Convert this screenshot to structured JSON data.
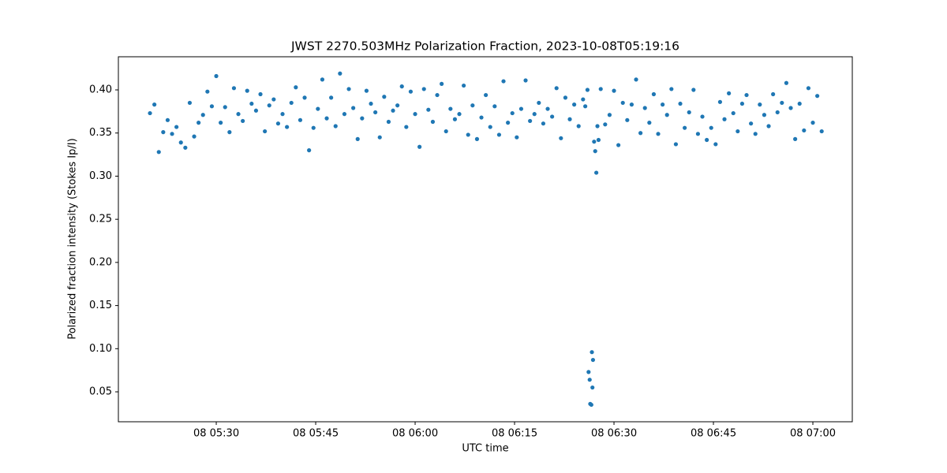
{
  "chart_data": {
    "type": "scatter",
    "title": "JWST 2270.503MHz Polarization Fraction, 2023-10-08T05:19:16",
    "x_label": "UTC time",
    "y_label": "Polarized fraction intensity (Stokes Ip/I)",
    "color": "#1f77b4",
    "xlim": [
      "05:15:14",
      "07:05:57"
    ],
    "xticks": [
      {
        "value": "05:30",
        "label": "08 05:30"
      },
      {
        "value": "05:45",
        "label": "08 05:45"
      },
      {
        "value": "06:00",
        "label": "08 06:00"
      },
      {
        "value": "06:15",
        "label": "08 06:15"
      },
      {
        "value": "06:30",
        "label": "08 06:30"
      },
      {
        "value": "06:45",
        "label": "08 06:45"
      },
      {
        "value": "07:00",
        "label": "08 07:00"
      }
    ],
    "ylim": [
      0.0153,
      0.4384
    ],
    "yticks": [
      {
        "value": 0.05,
        "label": "0.05"
      },
      {
        "value": 0.1,
        "label": "0.10"
      },
      {
        "value": 0.15,
        "label": "0.15"
      },
      {
        "value": 0.2,
        "label": "0.20"
      },
      {
        "value": 0.25,
        "label": "0.25"
      },
      {
        "value": 0.3,
        "label": "0.30"
      },
      {
        "value": 0.35,
        "label": "0.35"
      },
      {
        "value": 0.4,
        "label": "0.40"
      }
    ],
    "x": [
      "05:20:00",
      "05:20:40",
      "05:21:20",
      "05:22:00",
      "05:22:40",
      "05:23:20",
      "05:24:00",
      "05:24:40",
      "05:25:20",
      "05:26:00",
      "05:26:40",
      "05:27:20",
      "05:28:00",
      "05:28:40",
      "05:29:20",
      "05:30:00",
      "05:30:40",
      "05:31:20",
      "05:32:00",
      "05:32:40",
      "05:33:20",
      "05:34:00",
      "05:34:40",
      "05:35:20",
      "05:36:00",
      "05:36:40",
      "05:37:20",
      "05:38:00",
      "05:38:40",
      "05:39:20",
      "05:40:00",
      "05:40:40",
      "05:41:20",
      "05:42:00",
      "05:42:40",
      "05:43:20",
      "05:44:00",
      "05:44:40",
      "05:45:20",
      "05:46:00",
      "05:46:40",
      "05:47:20",
      "05:48:00",
      "05:48:40",
      "05:49:20",
      "05:50:00",
      "05:50:40",
      "05:51:20",
      "05:52:00",
      "05:52:40",
      "05:53:20",
      "05:54:00",
      "05:54:40",
      "05:55:20",
      "05:56:00",
      "05:56:40",
      "05:57:20",
      "05:58:00",
      "05:58:40",
      "05:59:20",
      "06:00:00",
      "06:00:40",
      "06:01:20",
      "06:02:00",
      "06:02:40",
      "06:03:20",
      "06:04:00",
      "06:04:40",
      "06:05:20",
      "06:06:00",
      "06:06:40",
      "06:07:20",
      "06:08:00",
      "06:08:40",
      "06:09:20",
      "06:10:00",
      "06:10:40",
      "06:11:20",
      "06:12:00",
      "06:12:40",
      "06:13:20",
      "06:14:00",
      "06:14:40",
      "06:15:20",
      "06:16:00",
      "06:16:40",
      "06:17:20",
      "06:18:00",
      "06:18:40",
      "06:19:20",
      "06:20:00",
      "06:20:40",
      "06:21:20",
      "06:22:00",
      "06:22:40",
      "06:23:20",
      "06:24:00",
      "06:24:40",
      "06:25:20",
      "06:25:40",
      "06:26:00",
      "06:26:10",
      "06:26:20",
      "06:26:25",
      "06:26:35",
      "06:26:40",
      "06:26:45",
      "06:26:50",
      "06:27:00",
      "06:27:10",
      "06:27:20",
      "06:27:30",
      "06:27:40",
      "06:28:00",
      "06:28:40",
      "06:29:20",
      "06:30:00",
      "06:30:40",
      "06:31:20",
      "06:32:00",
      "06:32:40",
      "06:33:20",
      "06:34:00",
      "06:34:40",
      "06:35:20",
      "06:36:00",
      "06:36:40",
      "06:37:20",
      "06:38:00",
      "06:38:40",
      "06:39:20",
      "06:40:00",
      "06:40:40",
      "06:41:20",
      "06:42:00",
      "06:42:40",
      "06:43:20",
      "06:44:00",
      "06:44:40",
      "06:45:20",
      "06:46:00",
      "06:46:40",
      "06:47:20",
      "06:48:00",
      "06:48:40",
      "06:49:20",
      "06:50:00",
      "06:50:40",
      "06:51:20",
      "06:52:00",
      "06:52:40",
      "06:53:20",
      "06:54:00",
      "06:54:40",
      "06:55:20",
      "06:56:00",
      "06:56:40",
      "06:57:20",
      "06:58:00",
      "06:58:40",
      "06:59:20",
      "07:00:00",
      "07:00:40",
      "07:01:20"
    ],
    "values": [
      0.373,
      0.383,
      0.328,
      0.351,
      0.365,
      0.349,
      0.357,
      0.339,
      0.333,
      0.385,
      0.346,
      0.362,
      0.371,
      0.398,
      0.381,
      0.416,
      0.362,
      0.38,
      0.351,
      0.402,
      0.372,
      0.364,
      0.399,
      0.384,
      0.376,
      0.395,
      0.352,
      0.382,
      0.389,
      0.361,
      0.372,
      0.357,
      0.385,
      0.403,
      0.365,
      0.391,
      0.33,
      0.356,
      0.378,
      0.412,
      0.367,
      0.391,
      0.358,
      0.419,
      0.372,
      0.401,
      0.379,
      0.343,
      0.367,
      0.399,
      0.384,
      0.374,
      0.345,
      0.392,
      0.363,
      0.376,
      0.382,
      0.404,
      0.357,
      0.398,
      0.372,
      0.334,
      0.401,
      0.377,
      0.363,
      0.394,
      0.407,
      0.352,
      0.378,
      0.366,
      0.372,
      0.405,
      0.348,
      0.382,
      0.343,
      0.368,
      0.394,
      0.357,
      0.381,
      0.348,
      0.41,
      0.362,
      0.373,
      0.345,
      0.378,
      0.411,
      0.364,
      0.372,
      0.385,
      0.361,
      0.378,
      0.369,
      0.402,
      0.344,
      0.391,
      0.366,
      0.383,
      0.358,
      0.389,
      0.381,
      0.4,
      0.073,
      0.064,
      0.036,
      0.035,
      0.096,
      0.055,
      0.087,
      0.34,
      0.329,
      0.304,
      0.358,
      0.342,
      0.401,
      0.36,
      0.371,
      0.399,
      0.336,
      0.385,
      0.365,
      0.383,
      0.412,
      0.35,
      0.379,
      0.362,
      0.395,
      0.349,
      0.383,
      0.371,
      0.401,
      0.337,
      0.384,
      0.356,
      0.374,
      0.4,
      0.349,
      0.369,
      0.342,
      0.356,
      0.337,
      0.386,
      0.366,
      0.396,
      0.373,
      0.352,
      0.384,
      0.394,
      0.361,
      0.349,
      0.383,
      0.371,
      0.358,
      0.395,
      0.374,
      0.385,
      0.408,
      0.379,
      0.343,
      0.384,
      0.353,
      0.402,
      0.362,
      0.393,
      0.352
    ]
  }
}
